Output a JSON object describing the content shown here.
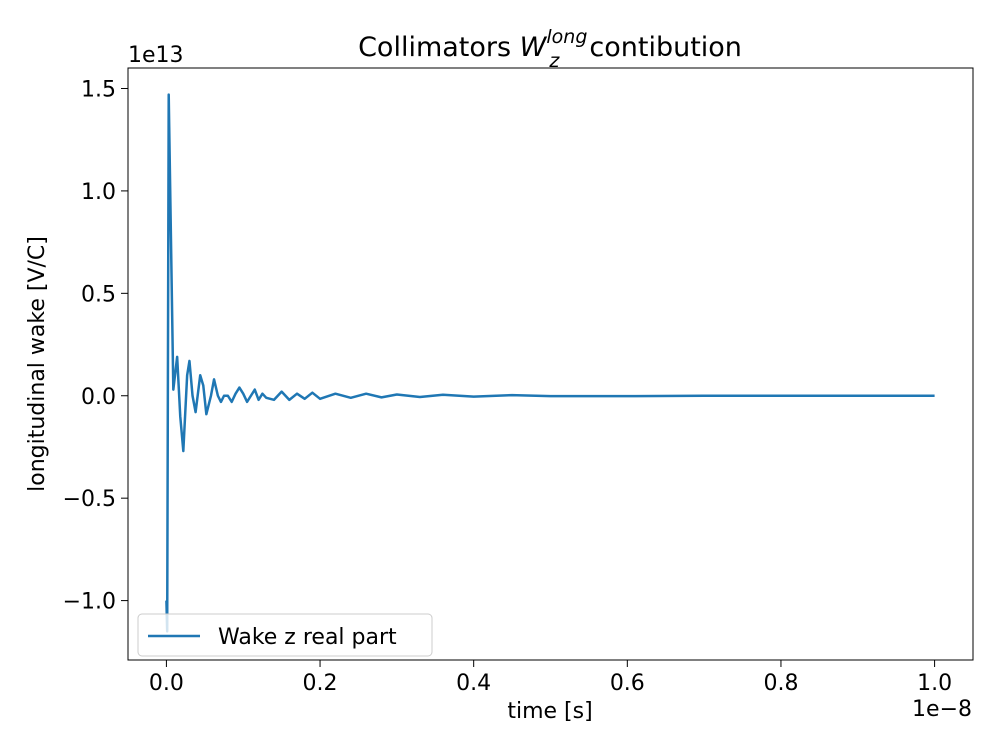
{
  "chart_data": {
    "type": "line",
    "title": {
      "prefix": "Collimators",
      "symbol": "W",
      "subscript": "z",
      "superscript": "long",
      "suffix": "contibution"
    },
    "x_label": "time [s]",
    "y_label": "longitudinal wake [V/C]",
    "x_offset_label": "1e−8",
    "y_offset_label": "1e13",
    "x": [
      0.0,
      0.001,
      0.003,
      0.009,
      0.014,
      0.018,
      0.022,
      0.027,
      0.03,
      0.034,
      0.038,
      0.044,
      0.048,
      0.052,
      0.058,
      0.062,
      0.067,
      0.071,
      0.075,
      0.08,
      0.085,
      0.09,
      0.095,
      0.1,
      0.105,
      0.11,
      0.115,
      0.12,
      0.125,
      0.13,
      0.14,
      0.15,
      0.16,
      0.17,
      0.18,
      0.19,
      0.2,
      0.22,
      0.24,
      0.26,
      0.28,
      0.3,
      0.33,
      0.36,
      0.4,
      0.45,
      0.5,
      0.6,
      0.7,
      0.8,
      0.9,
      1.0
    ],
    "series": [
      {
        "name": "Wake z real part",
        "color": "#1f77b4",
        "values": [
          -1.0,
          -1.15,
          1.47,
          0.03,
          0.19,
          -0.1,
          -0.27,
          0.1,
          0.17,
          0.0,
          -0.08,
          0.1,
          0.05,
          -0.09,
          0.0,
          0.08,
          0.0,
          -0.03,
          0.0,
          0.0,
          -0.03,
          0.01,
          0.04,
          0.01,
          -0.03,
          0.0,
          0.03,
          -0.02,
          0.01,
          -0.01,
          -0.02,
          0.02,
          -0.02,
          0.01,
          -0.015,
          0.015,
          -0.015,
          0.01,
          -0.01,
          0.01,
          -0.008,
          0.006,
          -0.006,
          0.005,
          -0.004,
          0.003,
          -0.002,
          -0.002,
          0.0,
          0.0,
          0.0,
          0.0
        ]
      }
    ],
    "xlim": [
      -0.05,
      1.05
    ],
    "ylim": [
      -1.29,
      1.6
    ],
    "xticks": [
      {
        "value": 0,
        "label": "0.0"
      },
      0.2,
      0.4,
      0.6,
      0.8,
      {
        "value": 1,
        "label": "1.0"
      }
    ],
    "yticks": [
      {
        "value": -1,
        "label": "−1.0"
      },
      {
        "value": -0.5,
        "label": "−0.5"
      },
      {
        "value": 0,
        "label": "0.0"
      },
      0.5,
      {
        "value": 1,
        "label": "1.0"
      },
      1.5
    ],
    "legend": "lower left",
    "grid": false
  }
}
